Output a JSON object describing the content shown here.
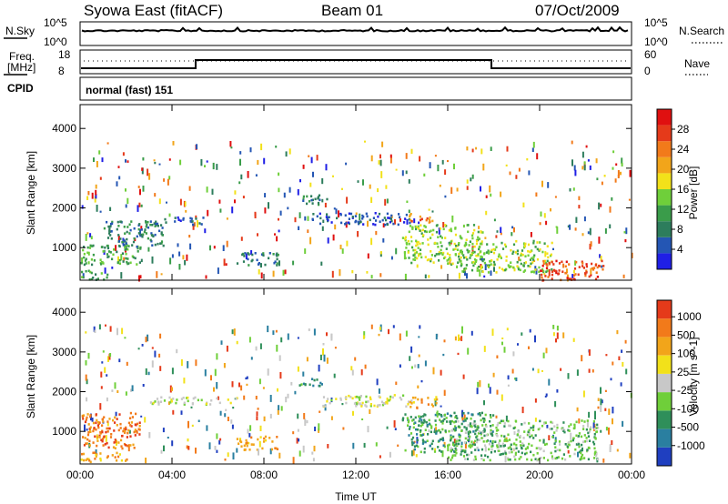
{
  "header": {
    "station": "Syowa East (fitACF)",
    "beam": "Beam 01",
    "date": "07/Oct/2009"
  },
  "noise_panel": {
    "left_label": "N.Sky",
    "right_label": "N.Search",
    "y_ticks_left": [
      "10^5",
      "10^0"
    ],
    "y_ticks_right": [
      "10^5",
      "10^0"
    ]
  },
  "freq_panel": {
    "left_label_1": "Freq.",
    "left_label_2": "[MHz]",
    "right_label": "Nave",
    "y_ticks_left": [
      "18",
      "8"
    ],
    "y_ticks_right": [
      "60",
      "0"
    ],
    "cpid_label": "CPID",
    "cpid_value": "normal (fast) 151"
  },
  "chart_data": [
    {
      "type": "heatmap",
      "title": "",
      "xlabel": "",
      "ylabel": "Slant Range [km]",
      "xlim_hours": [
        0,
        24
      ],
      "ylim": [
        180,
        4600
      ],
      "x_ticks": [
        "00:00",
        "04:00",
        "08:00",
        "12:00",
        "16:00",
        "20:00",
        "00:00"
      ],
      "y_ticks": [
        1000,
        2000,
        3000,
        4000
      ],
      "colorbar": {
        "label": "Power [dB]",
        "ticks": [
          "4",
          "8",
          "12",
          "16",
          "20",
          "24",
          "28"
        ],
        "colors": [
          "#1f1fe6",
          "#2456b4",
          "#2d7d5c",
          "#3a9c4a",
          "#6fcf3a",
          "#f2e11a",
          "#f2a51a",
          "#f27a1a",
          "#e53a1a",
          "#e01010"
        ]
      },
      "features": [
        {
          "t_start": 0.0,
          "t_end": 2.6,
          "range_start": 600,
          "range_end": 1100,
          "level": 3
        },
        {
          "t_start": 1.0,
          "t_end": 3.6,
          "range_start": 1000,
          "range_end": 1700,
          "level": 2
        },
        {
          "t_start": 3.6,
          "t_end": 5.4,
          "range_start": 1600,
          "range_end": 1800,
          "level": 1
        },
        {
          "t_start": 6.8,
          "t_end": 8.6,
          "range_start": 550,
          "range_end": 900,
          "level": 2
        },
        {
          "t_start": 9.5,
          "t_end": 10.8,
          "range_start": 2100,
          "range_end": 2350,
          "level": 2
        },
        {
          "t_start": 10.0,
          "t_end": 14.4,
          "range_start": 1600,
          "range_end": 1900,
          "level": 1
        },
        {
          "t_start": 14.3,
          "t_end": 15.3,
          "range_start": 1650,
          "range_end": 1900,
          "level": 7
        },
        {
          "t_start": 14.0,
          "t_end": 17.5,
          "range_start": 600,
          "range_end": 1600,
          "level": 4
        },
        {
          "t_start": 16.5,
          "t_end": 20.5,
          "range_start": 400,
          "range_end": 1200,
          "level": 4
        },
        {
          "t_start": 20.0,
          "t_end": 22.8,
          "range_start": 200,
          "range_end": 700,
          "level": 8
        },
        {
          "t_start": 0.0,
          "t_end": 1.2,
          "range_start": 200,
          "range_end": 450,
          "level": 3
        }
      ]
    },
    {
      "type": "heatmap",
      "title": "",
      "xlabel": "Time UT",
      "ylabel": "Slant Range [km]",
      "xlim_hours": [
        0,
        24
      ],
      "ylim": [
        180,
        4600
      ],
      "x_ticks": [
        "00:00",
        "04:00",
        "08:00",
        "12:00",
        "16:00",
        "20:00",
        "00:00"
      ],
      "y_ticks": [
        1000,
        2000,
        3000,
        4000
      ],
      "colorbar": {
        "label": "Velocity [m s^-1]",
        "ticks": [
          "1000",
          "500",
          "100",
          "25",
          "-25",
          "-100",
          "-500",
          "-1000"
        ],
        "colors": [
          "#1f3fc0",
          "#2a7fa0",
          "#2f8f5a",
          "#6fcf3a",
          "#c8c8c8",
          "#f2e11a",
          "#f2a51a",
          "#f27a1a",
          "#e53a1a"
        ]
      },
      "features": [
        {
          "t_start": 0.0,
          "t_end": 2.6,
          "range_start": 600,
          "range_end": 1500,
          "level": 7
        },
        {
          "t_start": 3.0,
          "t_end": 7.0,
          "range_start": 1700,
          "range_end": 1900,
          "level": 4
        },
        {
          "t_start": 6.8,
          "t_end": 8.6,
          "range_start": 550,
          "range_end": 900,
          "level": 6
        },
        {
          "t_start": 9.5,
          "t_end": 10.8,
          "range_start": 2150,
          "range_end": 2350,
          "level": 2
        },
        {
          "t_start": 10.5,
          "t_end": 14.4,
          "range_start": 1650,
          "range_end": 1950,
          "level": 4
        },
        {
          "t_start": 14.3,
          "t_end": 15.5,
          "range_start": 1600,
          "range_end": 1900,
          "level": 6
        },
        {
          "t_start": 14.0,
          "t_end": 18.0,
          "range_start": 500,
          "range_end": 1500,
          "level": 2
        },
        {
          "t_start": 16.0,
          "t_end": 22.5,
          "range_start": 300,
          "range_end": 1300,
          "level": 3
        },
        {
          "t_start": 0.0,
          "t_end": 2.0,
          "range_start": 250,
          "range_end": 500,
          "level": 6
        }
      ]
    }
  ]
}
